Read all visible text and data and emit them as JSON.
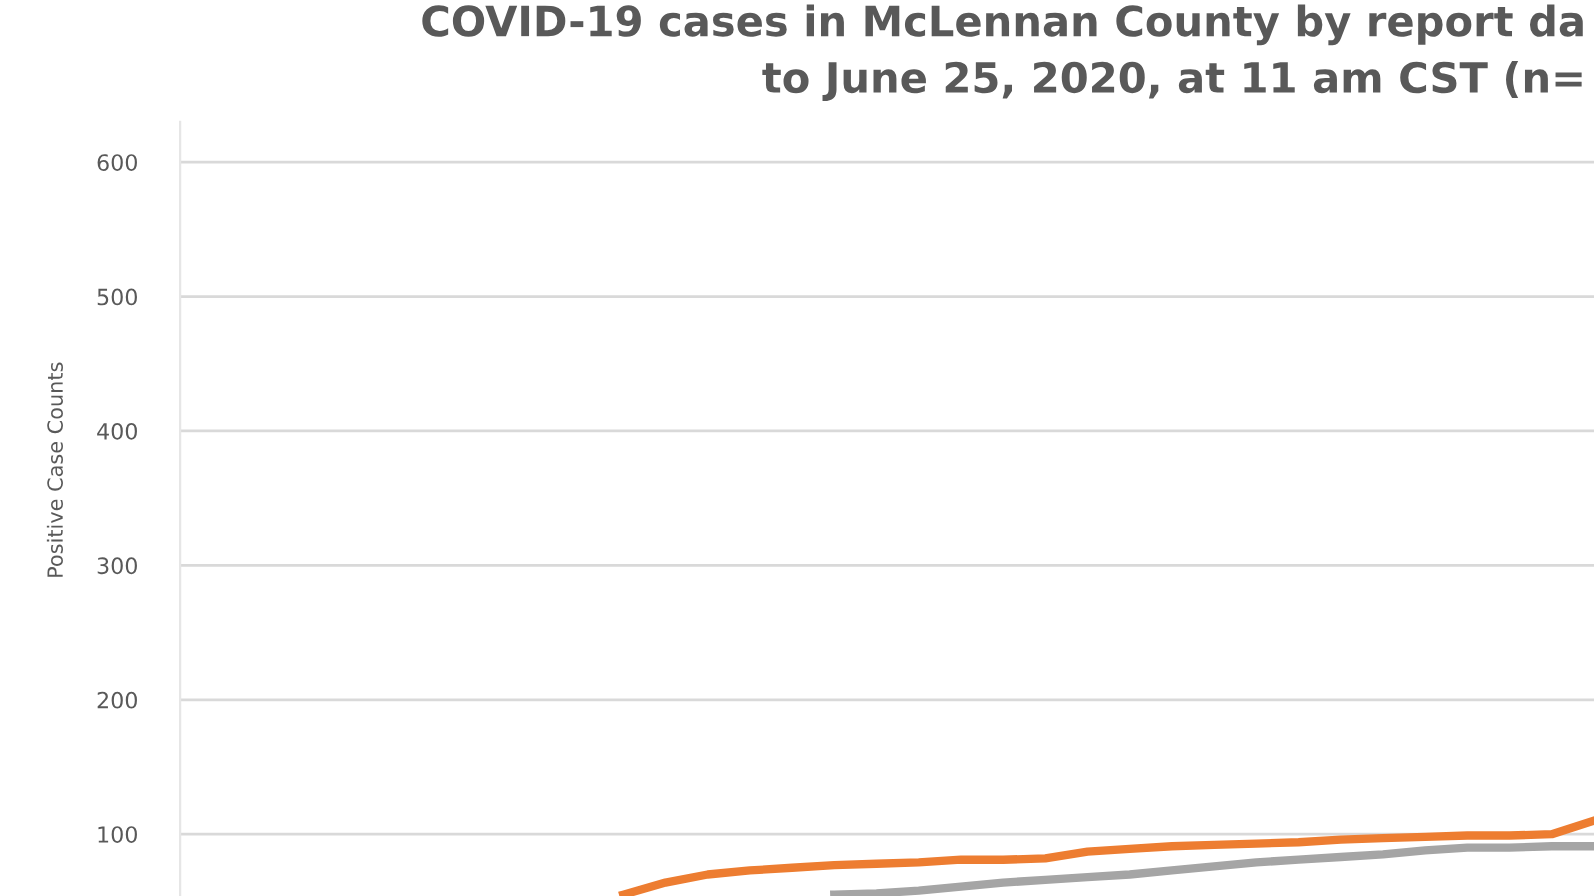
{
  "chart_data": {
    "type": "line",
    "title": "COVID-19 cases in McLennan County by report da\nto June 25, 2020, at 11 am CST (n=",
    "ylabel": "Positive Case Counts",
    "categories": [
      null,
      null,
      null,
      null,
      null,
      null,
      null,
      null,
      null,
      null,
      null,
      null,
      null,
      null,
      null,
      null,
      null,
      null,
      null,
      null,
      null,
      null,
      null,
      null,
      null,
      null,
      null,
      null,
      null,
      null,
      null,
      null,
      null,
      null
    ],
    "series": [
      {
        "color": "#ed7d31",
        "values": [
          null,
          null,
          null,
          null,
          null,
          null,
          null,
          null,
          null,
          null,
          55,
          64,
          70,
          73,
          75,
          77,
          78,
          79,
          81,
          81,
          82,
          87,
          89,
          91,
          92,
          93,
          94,
          96,
          97,
          98,
          99,
          99,
          100,
          110
        ]
      },
      {
        "color": "#a5a5a5",
        "values": [
          null,
          null,
          null,
          null,
          null,
          null,
          null,
          null,
          null,
          null,
          null,
          null,
          null,
          null,
          null,
          55,
          56,
          58,
          61,
          64,
          66,
          68,
          70,
          73,
          76,
          79,
          81,
          83,
          85,
          88,
          90,
          90,
          91,
          91
        ]
      }
    ],
    "ylim": [
      54,
      630
    ],
    "yticks": [
      100,
      200,
      300,
      400,
      500,
      600
    ],
    "grid": "y",
    "marker": "none",
    "line_style": "solid"
  }
}
